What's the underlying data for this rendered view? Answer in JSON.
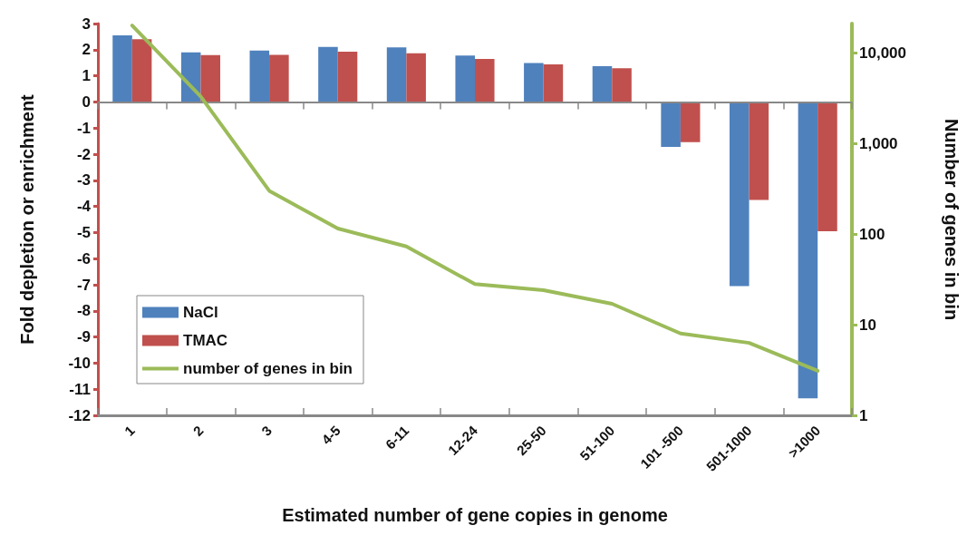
{
  "chart_data": {
    "type": "bar",
    "xlabel": "Estimated number of gene copies in genome",
    "ylabel": "Fold depletion or enrichment",
    "y2label": "Number of genes in bin",
    "categories": [
      "1",
      "2",
      "3",
      "4-5",
      "6-11",
      "12-24",
      "25-50",
      "51-100",
      "101 -500",
      "501-1000",
      ">1000"
    ],
    "series": [
      {
        "name": "NaCl",
        "color": "#4f81bd",
        "values": [
          2.55,
          1.9,
          1.97,
          2.11,
          2.09,
          1.78,
          1.49,
          1.37,
          -1.72,
          -7.05,
          -11.35
        ]
      },
      {
        "name": "TMAC",
        "color": "#c0504d",
        "values": [
          2.4,
          1.79,
          1.8,
          1.92,
          1.86,
          1.65,
          1.44,
          1.29,
          -1.54,
          -3.75,
          -4.95
        ]
      },
      {
        "name": "number of genes in bin",
        "type": "line",
        "axis": "y2",
        "color": "#9bbb59",
        "values": [
          20000,
          3300,
          300,
          115,
          73,
          28,
          24,
          17,
          8,
          6.3,
          3.1
        ]
      }
    ],
    "ylim": [
      -12,
      3
    ],
    "yticks": [
      -12,
      -11,
      -10,
      -9,
      -8,
      -7,
      -6,
      -5,
      -4,
      -3,
      -2,
      -1,
      0,
      1,
      2,
      3
    ],
    "y2lim": [
      1,
      21000
    ],
    "y2ticks": [
      1,
      10,
      100,
      {
        "value": 1000,
        "label": "1,000"
      },
      {
        "value": 10000,
        "label": "10,000"
      }
    ],
    "ref_lines": [
      {
        "axis": "y",
        "value": 0,
        "color": "#888888"
      }
    ],
    "log": "y2",
    "grid": false,
    "legend": "bottom left",
    "marker": "none"
  }
}
